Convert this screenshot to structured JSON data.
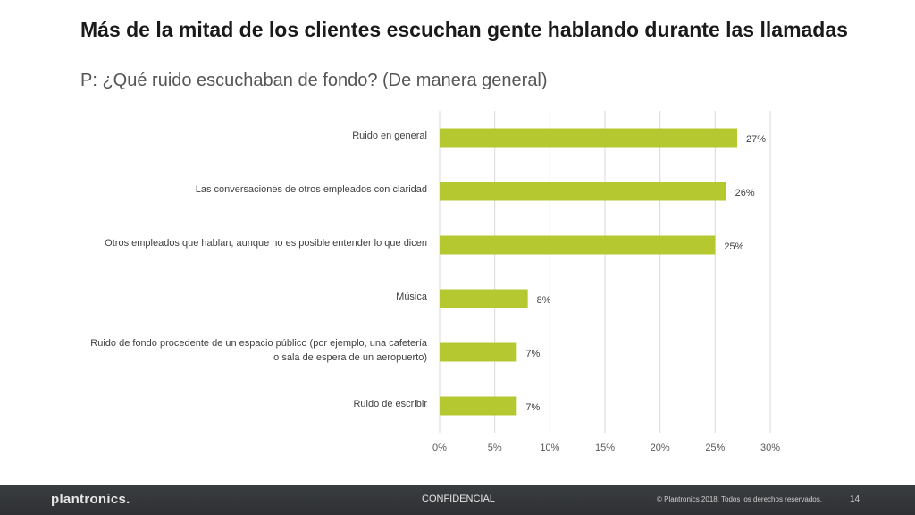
{
  "slide": {
    "title": "Más de la mitad de los clientes escuchan gente hablando durante las llamadas",
    "subtitle": "P: ¿Qué ruido escuchaban de fondo? (De manera general)"
  },
  "chart_data": {
    "type": "bar",
    "orientation": "horizontal",
    "categories": [
      "Ruido en general",
      "Las conversaciones de otros empleados con claridad",
      "Otros empleados que hablan, aunque no es posible entender lo que dicen",
      "Música",
      "Ruido de fondo procedente de un espacio público (por ejemplo, una cafetería o sala de espera de un aeropuerto)",
      "Ruido de escribir"
    ],
    "values": [
      27,
      26,
      25,
      8,
      7,
      7
    ],
    "data_labels": [
      "27%",
      "26%",
      "25%",
      "8%",
      "7%",
      "7%"
    ],
    "xlim": [
      0,
      30
    ],
    "x_ticks": [
      "0%",
      "5%",
      "10%",
      "15%",
      "20%",
      "25%",
      "30%"
    ],
    "grid": true,
    "bar_color": "#b5c82f"
  },
  "footer": {
    "logo": "plantronics.",
    "confidential": "CONFIDENCIAL",
    "copyright": "© Plantronics 2018. Todos los derechos reservados.",
    "page_number": "14"
  }
}
